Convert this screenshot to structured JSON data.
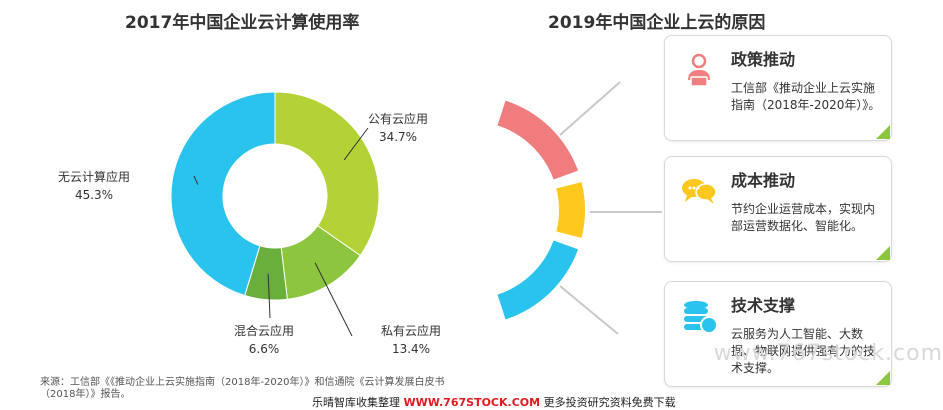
{
  "left_title": "2017年中国企业云计算使用率",
  "right_title": "2019年中国企业上云的原因",
  "chart_data": {
    "type": "pie",
    "title": "2017年中国企业云计算使用率",
    "categories": [
      "公有云应用",
      "私有云应用",
      "混合云应用",
      "无云计算应用"
    ],
    "values": [
      34.7,
      13.4,
      6.6,
      45.3
    ],
    "value_labels": [
      "34.7%",
      "13.4%",
      "6.6%",
      "45.3%"
    ],
    "colors": [
      "#b2d235",
      "#8cc63f",
      "#6aae3b",
      "#29c3ee"
    ],
    "donut": true
  },
  "arc_colors": [
    "#ef7d7d",
    "#ffc81e",
    "#29c3ee"
  ],
  "reasons": [
    {
      "title": "政策推动",
      "desc": "工信部《推动企业上云实施指南（2018年-2020年）》。",
      "icon": "person-reading-icon",
      "icon_color": "#f07f7f"
    },
    {
      "title": "成本推动",
      "desc": "节约企业运营成本，实现内部运营数据化、智能化。",
      "icon": "chat-bubbles-icon",
      "icon_color": "#ffc81e"
    },
    {
      "title": "技术支撑",
      "desc": "云服务为人工智能、大数据、物联网提供强有力的技术支撑。",
      "icon": "database-icon",
      "icon_color": "#29c3ee"
    }
  ],
  "source": "来源：工信部《《推动企业上云实施指南（2018年-2020年）》和信通院《云计算发展白皮书（2018年）》报告。",
  "footer_prefix": "乐晴智库收集整理",
  "footer_url": "WWW.767STOCK.COM",
  "footer_suffix": "更多投资研究资料免费下载",
  "watermark": "www.767stock.com"
}
